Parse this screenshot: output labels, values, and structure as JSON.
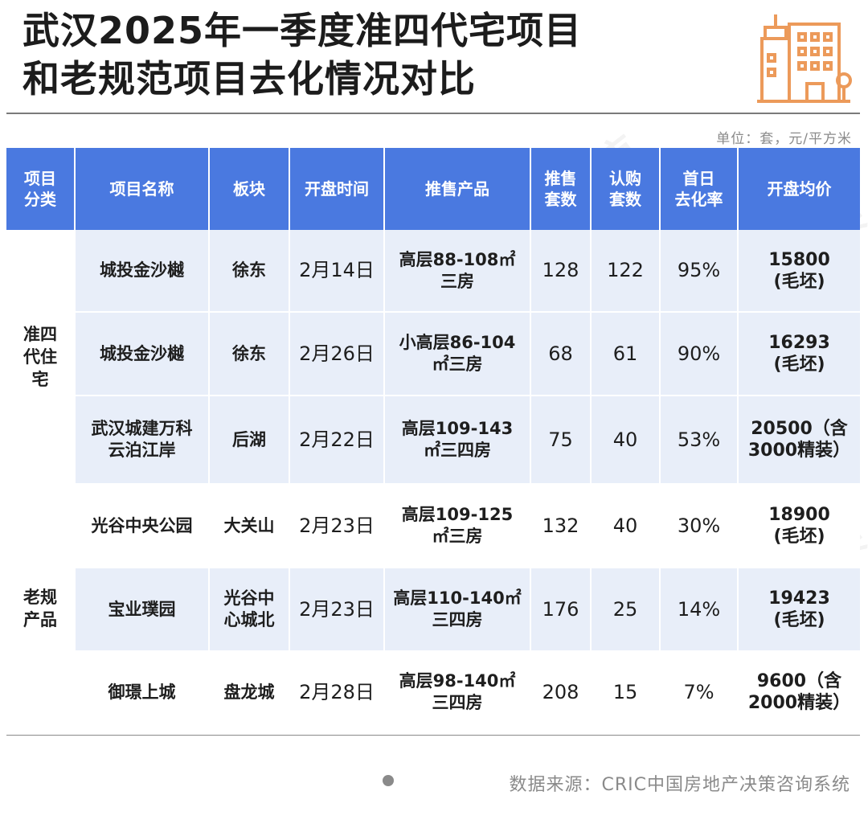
{
  "title_line1": "武汉2025年一季度准四代宅项目",
  "title_line2": "和老规范项目去化情况对比",
  "unit_note": "单位：套，元/平方米",
  "headers": [
    {
      "l1": "项目",
      "l2": "分类"
    },
    {
      "l1": "项目名称",
      "l2": ""
    },
    {
      "l1": "板块",
      "l2": ""
    },
    {
      "l1": "开盘时间",
      "l2": ""
    },
    {
      "l1": "推售产品",
      "l2": ""
    },
    {
      "l1": "推售",
      "l2": "套数"
    },
    {
      "l1": "认购",
      "l2": "套数"
    },
    {
      "l1": "首日",
      "l2": "去化率"
    },
    {
      "l1": "开盘均价",
      "l2": ""
    }
  ],
  "groups": [
    {
      "category_l1": "准四",
      "category_l2": "代住",
      "category_l3": "宅"
    },
    {
      "category_l1": "老规",
      "category_l2": "产品",
      "category_l3": ""
    }
  ],
  "rows": [
    {
      "name_l1": "城投金沙樾",
      "name_l2": "",
      "area_l1": "徐东",
      "area_l2": "",
      "date": "2月14日",
      "product_l1": "高层88-108㎡",
      "product_l2": "三房",
      "units": "128",
      "subscribed": "122",
      "rate": "95%",
      "price_l1": "15800",
      "price_l2": "(毛坯)"
    },
    {
      "name_l1": "城投金沙樾",
      "name_l2": "",
      "area_l1": "徐东",
      "area_l2": "",
      "date": "2月26日",
      "product_l1": "小高层86-104",
      "product_l2": "㎡三房",
      "units": "68",
      "subscribed": "61",
      "rate": "90%",
      "price_l1": "16293",
      "price_l2": "(毛坯)"
    },
    {
      "name_l1": "武汉城建万科",
      "name_l2": "云泊江岸",
      "area_l1": "后湖",
      "area_l2": "",
      "date": "2月22日",
      "product_l1": "高层109-143",
      "product_l2": "㎡三四房",
      "units": "75",
      "subscribed": "40",
      "rate": "53%",
      "price_l1": "20500（含",
      "price_l2": "3000精装）"
    },
    {
      "name_l1": "光谷中央公园",
      "name_l2": "",
      "area_l1": "大关山",
      "area_l2": "",
      "date": "2月23日",
      "product_l1": "高层109-125",
      "product_l2": "㎡三房",
      "units": "132",
      "subscribed": "40",
      "rate": "30%",
      "price_l1": "18900",
      "price_l2": "(毛坯)"
    },
    {
      "name_l1": "宝业璞园",
      "name_l2": "",
      "area_l1": "光谷中",
      "area_l2": "心城北",
      "date": "2月23日",
      "product_l1": "高层110-140㎡",
      "product_l2": "三四房",
      "units": "176",
      "subscribed": "25",
      "rate": "14%",
      "price_l1": "19423",
      "price_l2": "(毛坯)"
    },
    {
      "name_l1": "御璟上城",
      "name_l2": "",
      "area_l1": "盘龙城",
      "area_l2": "",
      "date": "2月28日",
      "product_l1": "高层98-140㎡",
      "product_l2": "三四房",
      "units": "208",
      "subscribed": "15",
      "rate": "7%",
      "price_l1": "9600（含",
      "price_l2": "2000精装）"
    }
  ],
  "source": "数据来源：CRIC中国房地产决策咨询系统",
  "colors": {
    "header_bg": "#4a79e0",
    "row_shade": "#e8eef9",
    "logo_orange": "#ec9a5a"
  },
  "icons": {
    "logo": "building-icon"
  }
}
